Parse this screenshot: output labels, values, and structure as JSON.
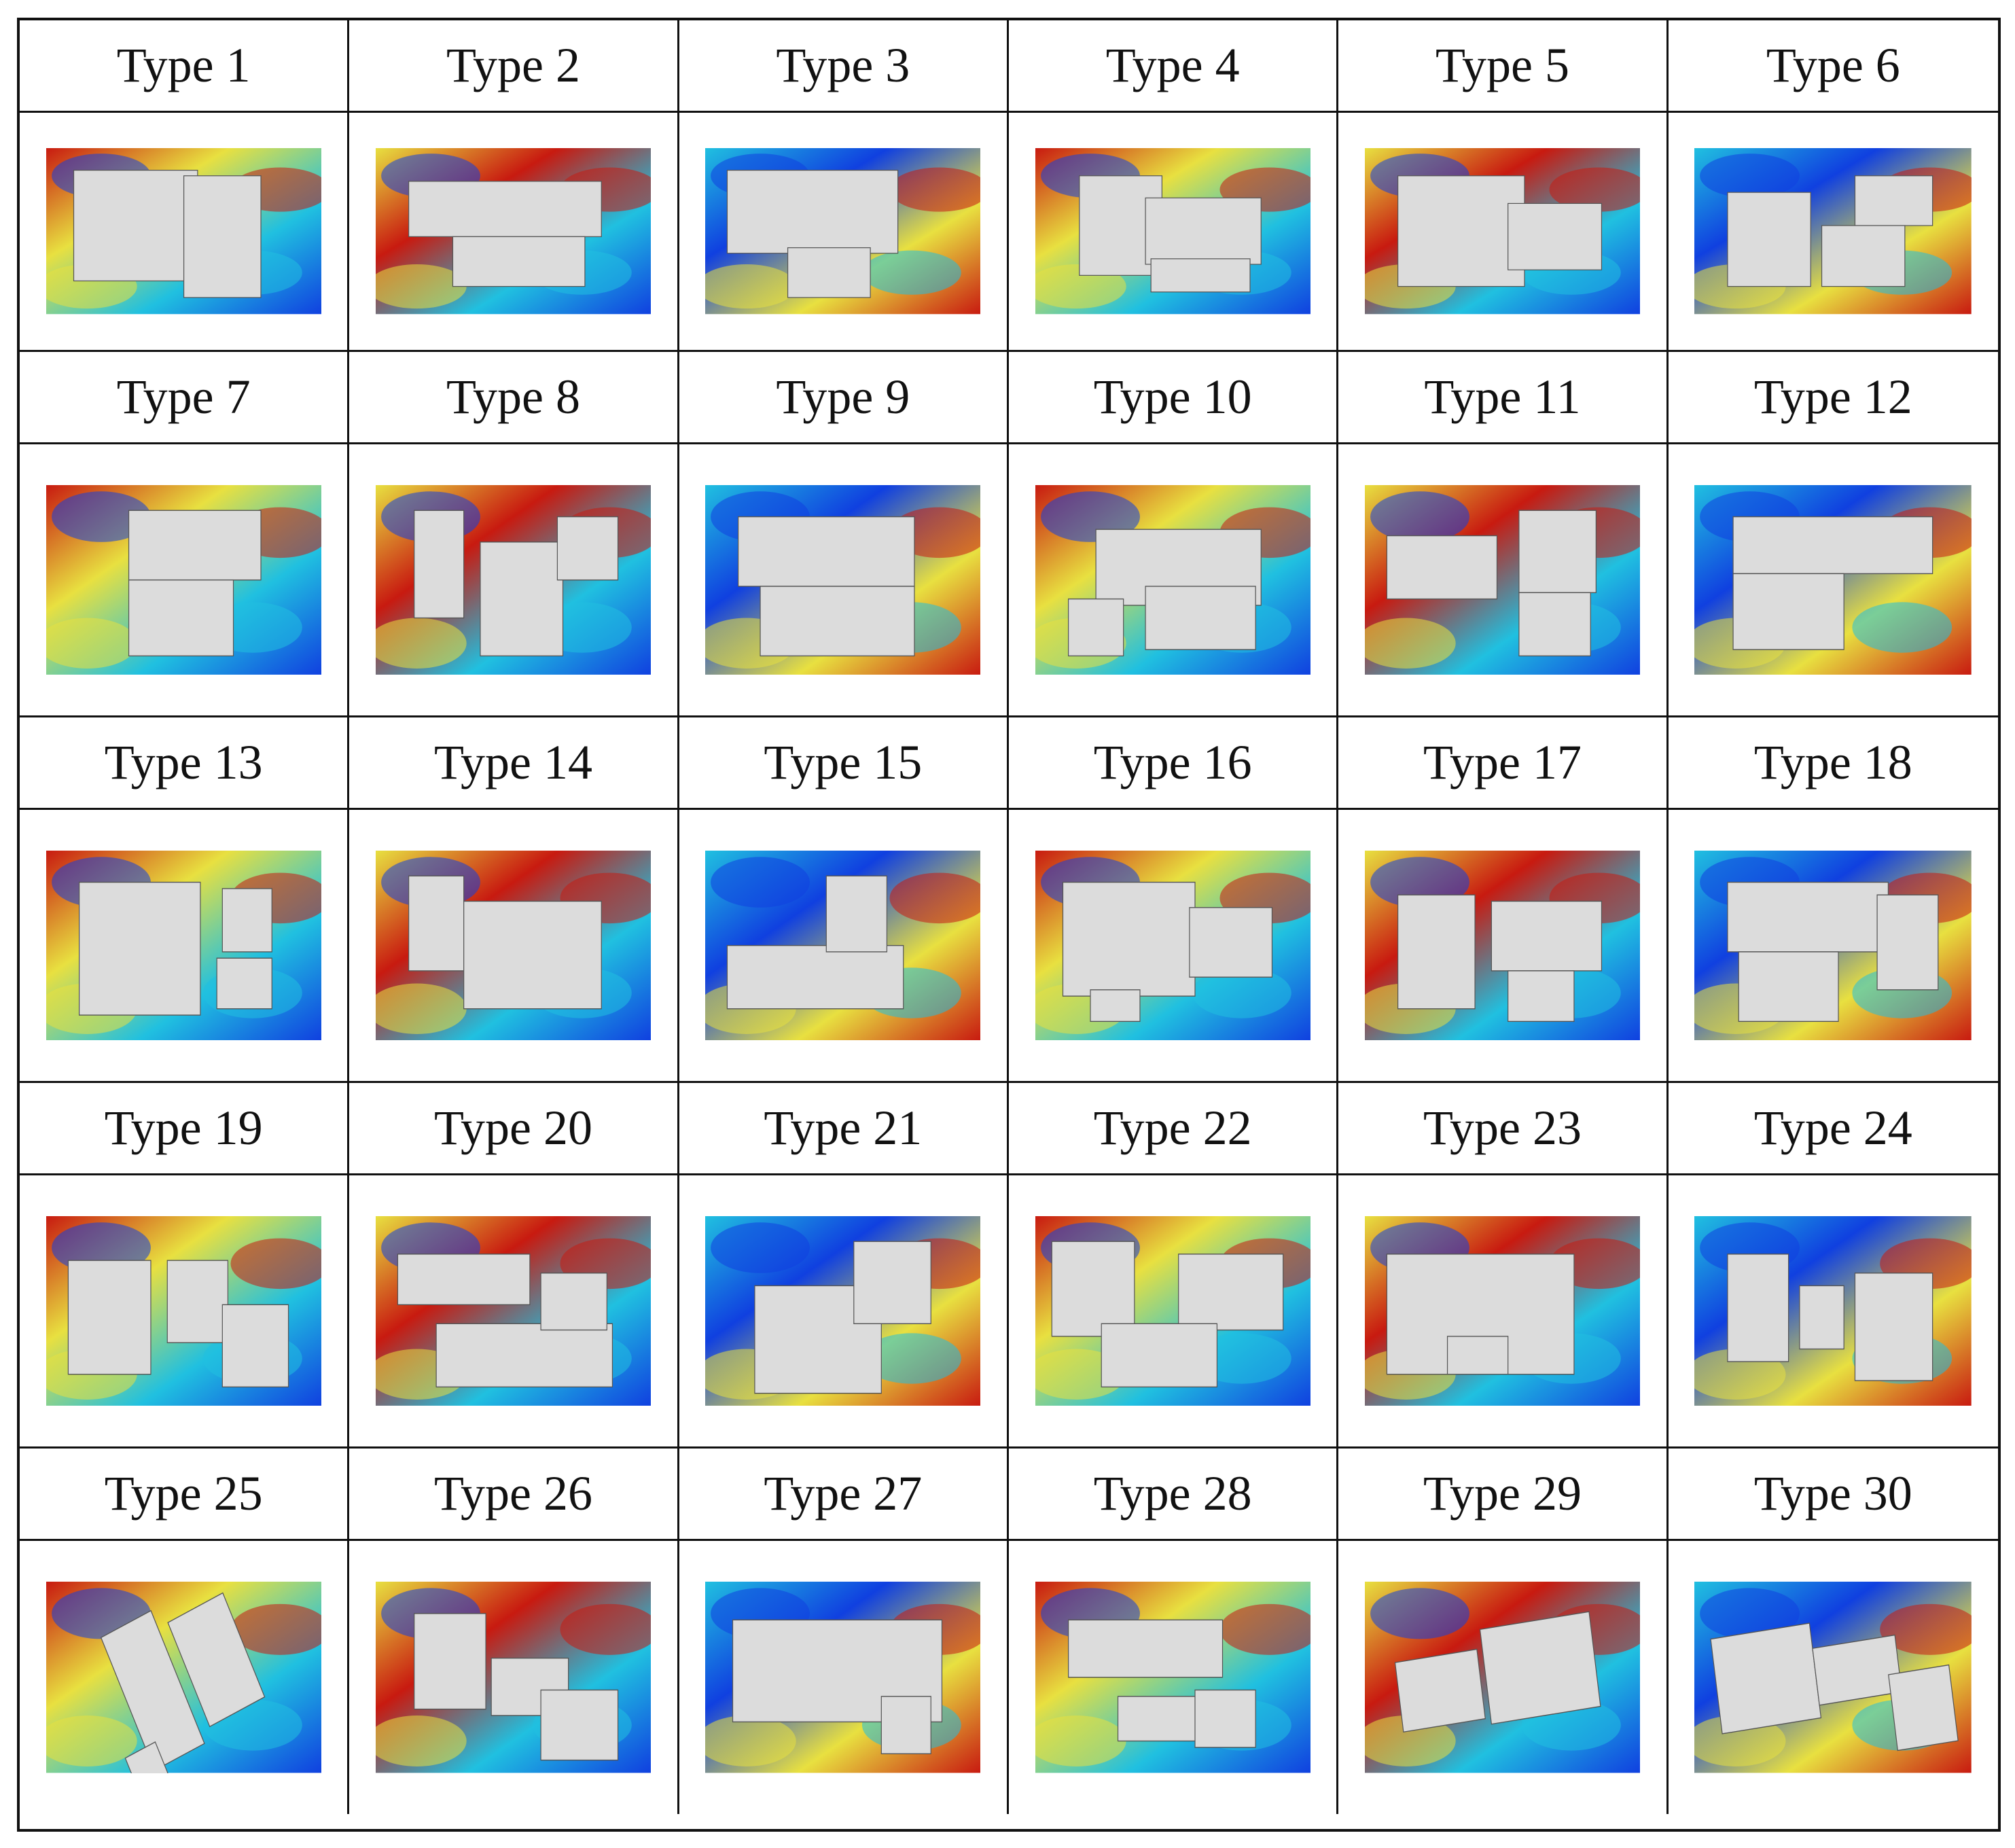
{
  "colors": {
    "building": "#dcdcdc",
    "low": "#1040e0",
    "mid": "#20c0e0",
    "mid2": "#e8e040",
    "high": "#c81a10"
  },
  "types": [
    {
      "label": "Type 1"
    },
    {
      "label": "Type 2"
    },
    {
      "label": "Type 3"
    },
    {
      "label": "Type 4"
    },
    {
      "label": "Type 5"
    },
    {
      "label": "Type 6"
    },
    {
      "label": "Type 7"
    },
    {
      "label": "Type 8"
    },
    {
      "label": "Type 9"
    },
    {
      "label": "Type 10"
    },
    {
      "label": "Type 11"
    },
    {
      "label": "Type 12"
    },
    {
      "label": "Type 13"
    },
    {
      "label": "Type 14"
    },
    {
      "label": "Type 15"
    },
    {
      "label": "Type 16"
    },
    {
      "label": "Type 17"
    },
    {
      "label": "Type 18"
    },
    {
      "label": "Type 19"
    },
    {
      "label": "Type 20"
    },
    {
      "label": "Type 21"
    },
    {
      "label": "Type 22"
    },
    {
      "label": "Type 23"
    },
    {
      "label": "Type 24"
    },
    {
      "label": "Type 25"
    },
    {
      "label": "Type 26"
    },
    {
      "label": "Type 27"
    },
    {
      "label": "Type 28"
    },
    {
      "label": "Type 29"
    },
    {
      "label": "Type 30"
    }
  ]
}
